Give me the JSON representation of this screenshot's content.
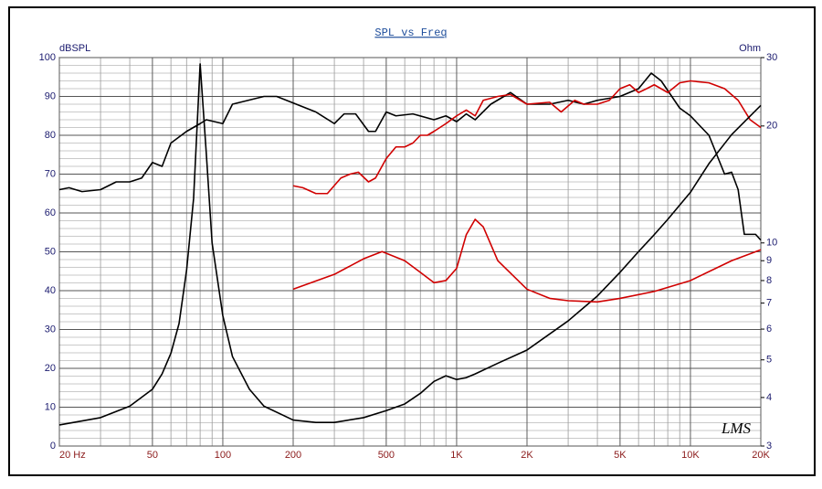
{
  "chart_data": {
    "type": "line",
    "title": "SPL vs Freq",
    "y_label": "dBSPL",
    "y2_label": "Ohm",
    "annotation": "LMS",
    "xlog": true,
    "y2log": true,
    "xlim": [
      20,
      20000
    ],
    "ylim": [
      0,
      100
    ],
    "y2lim": [
      3,
      30
    ],
    "xticks": [
      {
        "value": 20,
        "label": "20  Hz"
      },
      50,
      100,
      200,
      500,
      {
        "value": 1000,
        "label": "1K"
      },
      {
        "value": 2000,
        "label": "2K"
      },
      {
        "value": 5000,
        "label": "5K"
      },
      {
        "value": 10000,
        "label": "10K"
      },
      {
        "value": 20000,
        "label": "20K"
      }
    ],
    "yticks": [
      0,
      10,
      20,
      30,
      40,
      50,
      60,
      70,
      80,
      90,
      100
    ],
    "y2ticks": [
      3,
      4,
      5,
      6,
      7,
      8,
      9,
      10,
      20,
      30
    ],
    "xgrid": [
      20,
      30,
      40,
      50,
      60,
      70,
      80,
      90,
      100,
      200,
      300,
      400,
      500,
      600,
      700,
      800,
      900,
      1000,
      2000,
      3000,
      4000,
      5000,
      6000,
      7000,
      8000,
      9000,
      10000,
      20000
    ],
    "ygrid": [
      0,
      2,
      4,
      6,
      8,
      10,
      12,
      14,
      16,
      18,
      20,
      22,
      24,
      26,
      28,
      30,
      32,
      34,
      36,
      38,
      40,
      42,
      44,
      46,
      48,
      50,
      52,
      54,
      56,
      58,
      60,
      62,
      64,
      66,
      68,
      70,
      72,
      74,
      76,
      78,
      80,
      82,
      84,
      86,
      88,
      90,
      92,
      94,
      96,
      98,
      100
    ],
    "grid": true,
    "series": [
      {
        "color": "#000000",
        "axis": "y",
        "x": [
          20,
          22,
          25,
          30,
          35,
          40,
          45,
          50,
          55,
          60,
          70,
          80,
          85,
          100,
          110,
          150,
          170,
          250,
          300,
          330,
          370,
          420,
          450,
          500,
          550,
          650,
          800,
          900,
          1000,
          1100,
          1200,
          1400,
          1700,
          2000,
          2500,
          3000,
          3500,
          4000,
          5000,
          6000,
          6800,
          7500,
          9000,
          10000,
          12000,
          14000,
          15000,
          16000,
          17000,
          19000,
          20000
        ],
        "values": [
          66,
          66.5,
          65.5,
          66,
          68,
          68,
          69,
          73,
          72,
          78,
          81,
          83,
          84,
          83,
          88,
          90,
          90,
          86,
          83,
          85.5,
          85.5,
          81,
          81,
          86,
          85,
          85.5,
          84,
          85,
          83.5,
          85.5,
          84,
          88,
          91,
          88,
          88,
          89,
          88,
          89,
          90,
          92,
          96,
          94,
          87,
          85,
          80,
          70,
          70.5,
          66,
          54.5,
          54.5,
          53
        ]
      },
      {
        "color": "#d00000",
        "axis": "y",
        "x": [
          200,
          220,
          250,
          280,
          320,
          350,
          380,
          420,
          450,
          500,
          550,
          600,
          650,
          700,
          750,
          800,
          900,
          1000,
          1100,
          1200,
          1300,
          1500,
          1700,
          2000,
          2500,
          2800,
          3200,
          3500,
          4000,
          4500,
          5000,
          5500,
          6000,
          6500,
          7000,
          8000,
          9000,
          10000,
          12000,
          14000,
          16000,
          18000,
          20000
        ],
        "values": [
          67,
          66.5,
          65,
          65,
          69,
          70,
          70.5,
          68,
          69,
          74,
          77,
          77,
          78,
          80,
          80,
          81,
          83,
          85,
          86.5,
          85,
          89,
          90,
          90.5,
          88,
          88.5,
          86,
          89,
          88,
          88,
          89,
          92,
          93,
          91,
          92,
          93,
          91,
          93.5,
          94,
          93.5,
          92,
          89,
          84,
          82
        ]
      },
      {
        "color": "#000000",
        "axis": "y2",
        "x": [
          20,
          30,
          40,
          50,
          55,
          60,
          65,
          70,
          75,
          80,
          85,
          90,
          100,
          110,
          130,
          150,
          200,
          250,
          300,
          400,
          500,
          600,
          700,
          800,
          900,
          1000,
          1100,
          1200,
          1500,
          2000,
          3000,
          4000,
          5000,
          6000,
          7000,
          8000,
          10000,
          12000,
          15000,
          20000
        ],
        "values": [
          3.4,
          3.55,
          3.8,
          4.2,
          4.6,
          5.2,
          6.2,
          8.5,
          13,
          28.9,
          17,
          10,
          6.5,
          5.1,
          4.2,
          3.8,
          3.5,
          3.45,
          3.45,
          3.55,
          3.7,
          3.85,
          4.1,
          4.4,
          4.55,
          4.45,
          4.5,
          4.6,
          4.9,
          5.3,
          6.3,
          7.3,
          8.4,
          9.5,
          10.5,
          11.5,
          13.5,
          16,
          19,
          22.6
        ]
      },
      {
        "color": "#d00000",
        "axis": "y2",
        "x": [
          200,
          300,
          400,
          480,
          600,
          700,
          800,
          900,
          1000,
          1100,
          1200,
          1300,
          1500,
          2000,
          2500,
          3000,
          4000,
          5000,
          7000,
          10000,
          15000,
          20000
        ],
        "values": [
          7.6,
          8.3,
          9.1,
          9.5,
          9.0,
          8.4,
          7.9,
          8.0,
          8.6,
          10.5,
          11.5,
          11.0,
          9.0,
          7.6,
          7.2,
          7.1,
          7.05,
          7.2,
          7.5,
          8.0,
          9.0,
          9.6
        ]
      }
    ]
  }
}
